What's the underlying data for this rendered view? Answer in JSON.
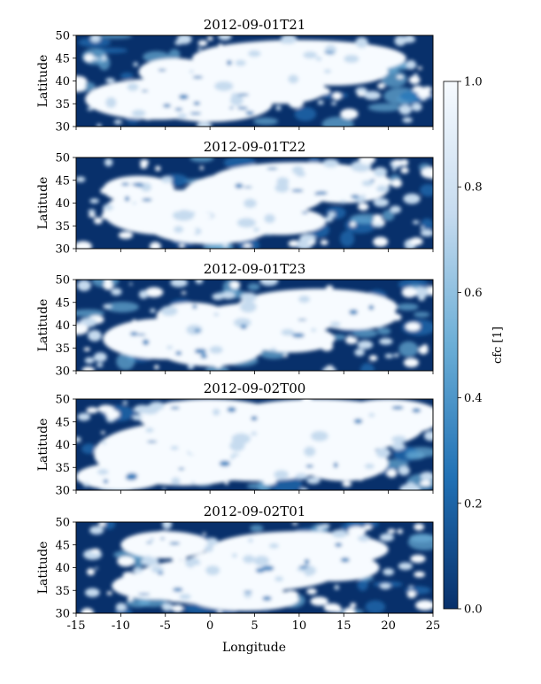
{
  "chart_data": {
    "type": "heatmap",
    "colormap": "Blues_r",
    "colors": {
      "low": "#08306b",
      "mid_dark": "#2171b5",
      "mid": "#6baed6",
      "mid_light": "#c6dbef",
      "high": "#f7fbff"
    },
    "xlabel": "Longitude",
    "ylabel": "Latitude",
    "xlim": [
      -15,
      25
    ],
    "ylim": [
      30,
      50
    ],
    "x_ticks": [
      "-15",
      "-10",
      "-5",
      "0",
      "5",
      "10",
      "15",
      "20",
      "25"
    ],
    "y_ticks": [
      "30",
      "35",
      "40",
      "45",
      "50"
    ],
    "panels": [
      {
        "title": "2012-09-01T21"
      },
      {
        "title": "2012-09-01T22"
      },
      {
        "title": "2012-09-01T23"
      },
      {
        "title": "2012-09-02T00"
      },
      {
        "title": "2012-09-02T01"
      }
    ],
    "colorbar": {
      "label": "cfc [1]",
      "range": [
        0.0,
        1.0
      ],
      "ticks": [
        "0.0",
        "0.2",
        "0.4",
        "0.6",
        "0.8",
        "1.0"
      ]
    }
  }
}
